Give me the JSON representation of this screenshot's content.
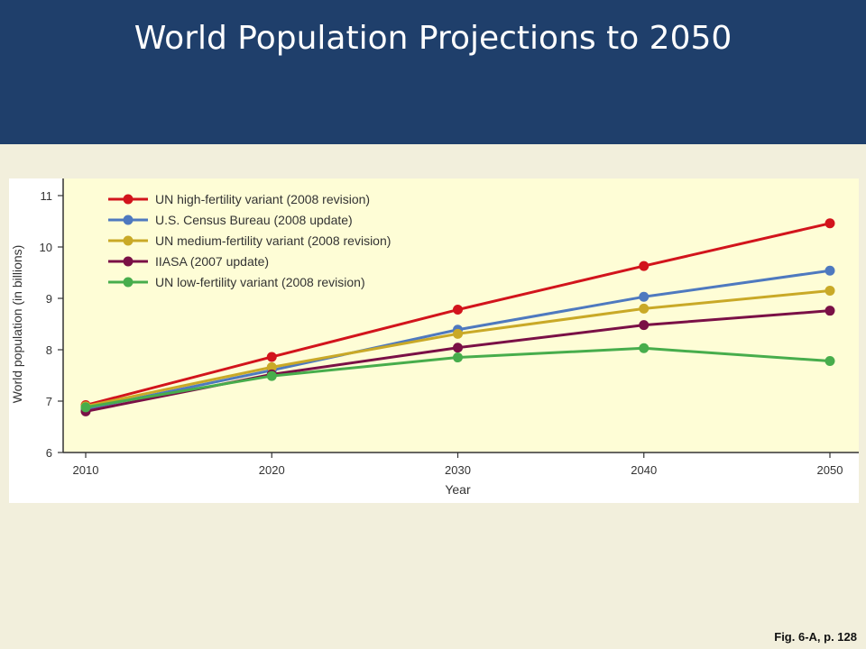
{
  "slide": {
    "title": "World Population Projections to 2050",
    "caption": "Fig. 6-A, p. 128"
  },
  "colors": {
    "header_bg": "#1f3f6b",
    "slide_bg": "#f2efdc",
    "plot_bg": "#fefdd6"
  },
  "chart_data": {
    "type": "line",
    "title": "",
    "xlabel": "Year",
    "ylabel": "World population (in billions)",
    "x": [
      2010,
      2020,
      2030,
      2040,
      2050
    ],
    "xlim": [
      2010,
      2050
    ],
    "ylim": [
      6,
      11
    ],
    "yticks": [
      6,
      7,
      8,
      9,
      10,
      11
    ],
    "grid": false,
    "legend_position": "top-left",
    "series": [
      {
        "name": "UN high-fertility variant (2008 revision)",
        "color": "#d2141c",
        "values": [
          6.92,
          7.86,
          8.78,
          9.63,
          10.46
        ]
      },
      {
        "name": "U.S. Census Bureau (2008 update)",
        "color": "#4e79bf",
        "values": [
          6.85,
          7.6,
          8.39,
          9.03,
          9.54
        ]
      },
      {
        "name": "UN medium-fertility variant (2008 revision)",
        "color": "#c9a927",
        "values": [
          6.9,
          7.66,
          8.31,
          8.8,
          9.15
        ]
      },
      {
        "name": "IIASA (2007 update)",
        "color": "#7a1046",
        "values": [
          6.8,
          7.52,
          8.04,
          8.48,
          8.76
        ]
      },
      {
        "name": "UN low-fertility variant (2008 revision)",
        "color": "#47ad4c",
        "values": [
          6.88,
          7.49,
          7.85,
          8.03,
          7.78
        ]
      }
    ]
  }
}
